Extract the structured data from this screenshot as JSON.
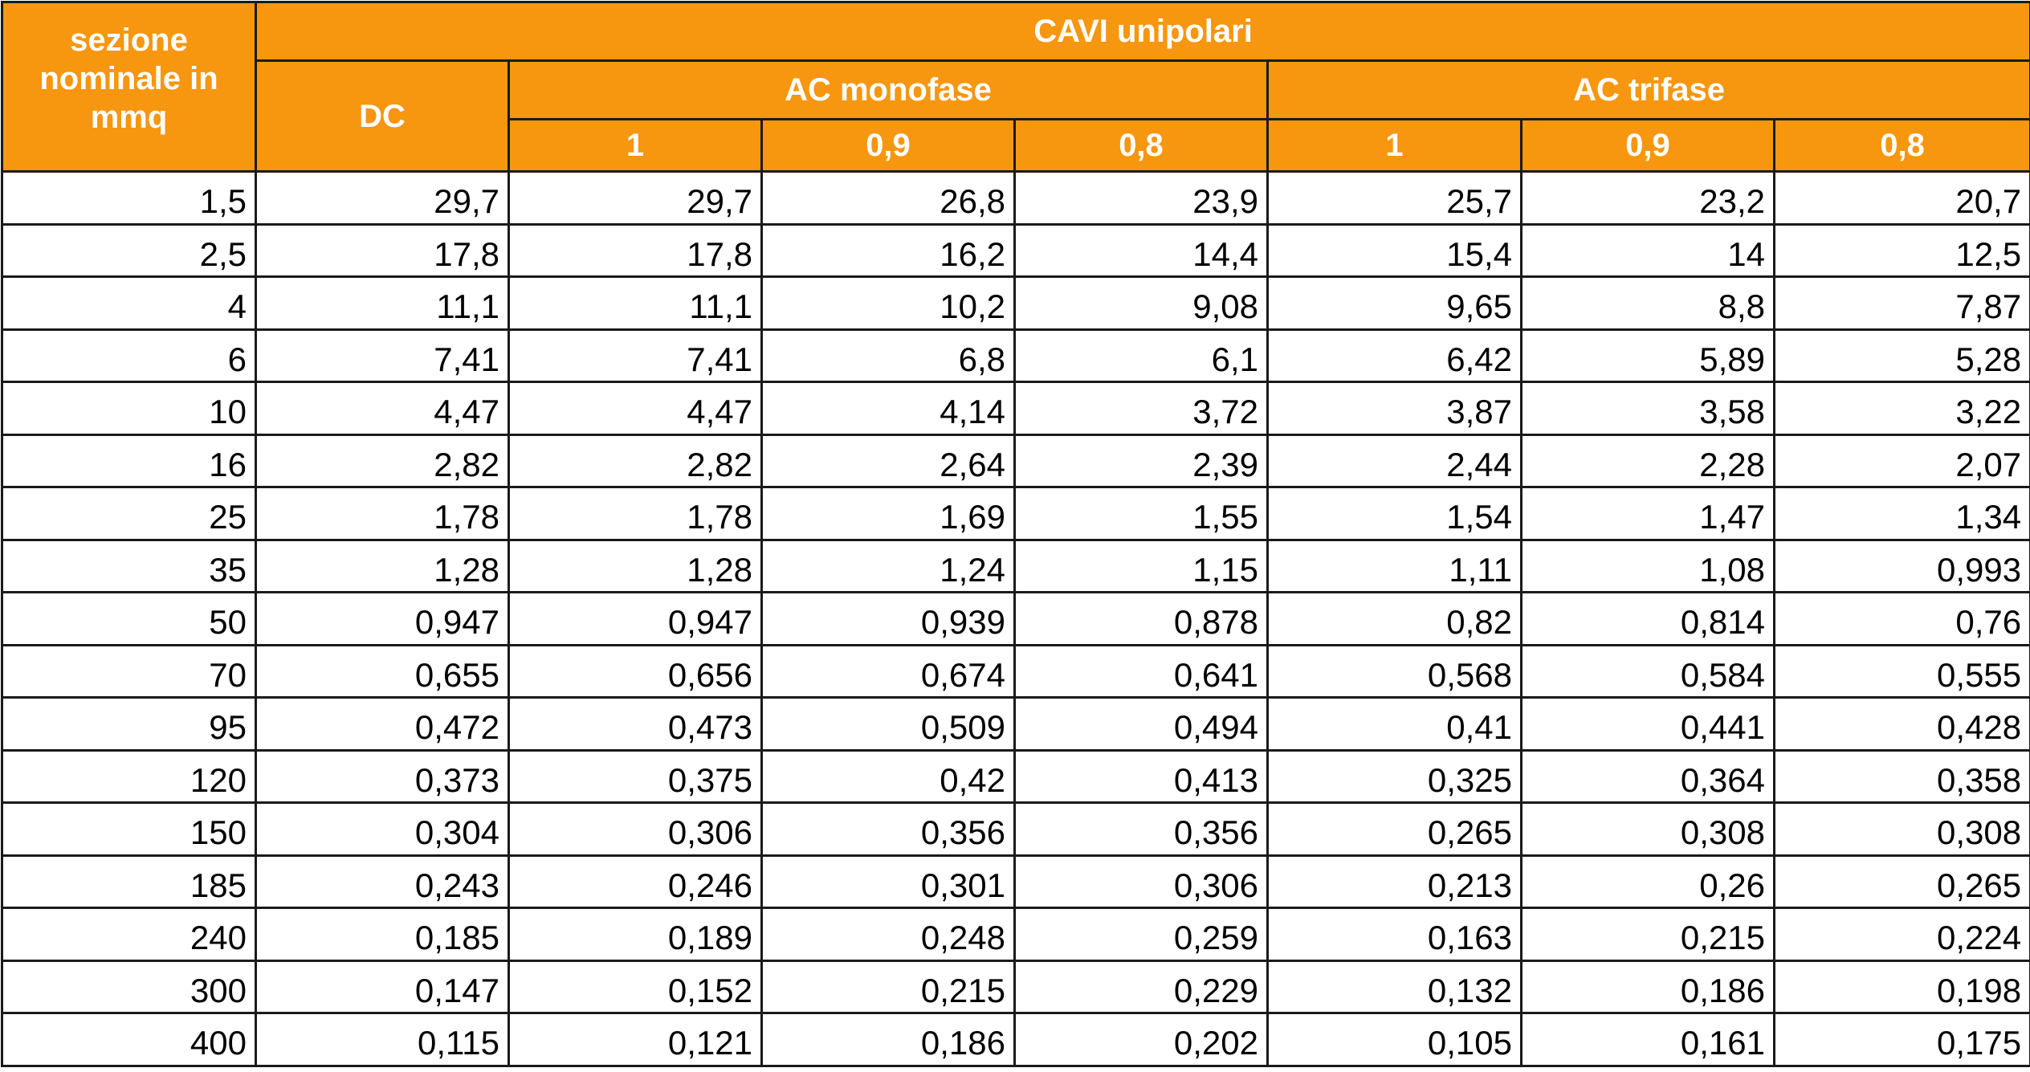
{
  "header": {
    "corner_lines": [
      "sezione",
      "nominale in",
      "mmq"
    ],
    "group_title": "CAVI unipolari",
    "dc_label": "DC",
    "ac_mono_label": "AC monofase",
    "ac_tri_label": "AC trifase",
    "cosphi": [
      "1",
      "0,9",
      "0,8",
      "1",
      "0,9",
      "0,8"
    ]
  },
  "rows": [
    [
      "1,5",
      "29,7",
      "29,7",
      "26,8",
      "23,9",
      "25,7",
      "23,2",
      "20,7"
    ],
    [
      "2,5",
      "17,8",
      "17,8",
      "16,2",
      "14,4",
      "15,4",
      "14",
      "12,5"
    ],
    [
      "4",
      "11,1",
      "11,1",
      "10,2",
      "9,08",
      "9,65",
      "8,8",
      "7,87"
    ],
    [
      "6",
      "7,41",
      "7,41",
      "6,8",
      "6,1",
      "6,42",
      "5,89",
      "5,28"
    ],
    [
      "10",
      "4,47",
      "4,47",
      "4,14",
      "3,72",
      "3,87",
      "3,58",
      "3,22"
    ],
    [
      "16",
      "2,82",
      "2,82",
      "2,64",
      "2,39",
      "2,44",
      "2,28",
      "2,07"
    ],
    [
      "25",
      "1,78",
      "1,78",
      "1,69",
      "1,55",
      "1,54",
      "1,47",
      "1,34"
    ],
    [
      "35",
      "1,28",
      "1,28",
      "1,24",
      "1,15",
      "1,11",
      "1,08",
      "0,993"
    ],
    [
      "50",
      "0,947",
      "0,947",
      "0,939",
      "0,878",
      "0,82",
      "0,814",
      "0,76"
    ],
    [
      "70",
      "0,655",
      "0,656",
      "0,674",
      "0,641",
      "0,568",
      "0,584",
      "0,555"
    ],
    [
      "95",
      "0,472",
      "0,473",
      "0,509",
      "0,494",
      "0,41",
      "0,441",
      "0,428"
    ],
    [
      "120",
      "0,373",
      "0,375",
      "0,42",
      "0,413",
      "0,325",
      "0,364",
      "0,358"
    ],
    [
      "150",
      "0,304",
      "0,306",
      "0,356",
      "0,356",
      "0,265",
      "0,308",
      "0,308"
    ],
    [
      "185",
      "0,243",
      "0,246",
      "0,301",
      "0,306",
      "0,213",
      "0,26",
      "0,265"
    ],
    [
      "240",
      "0,185",
      "0,189",
      "0,248",
      "0,259",
      "0,163",
      "0,215",
      "0,224"
    ],
    [
      "300",
      "0,147",
      "0,152",
      "0,215",
      "0,229",
      "0,132",
      "0,186",
      "0,198"
    ],
    [
      "400",
      "0,115",
      "0,121",
      "0,186",
      "0,202",
      "0,105",
      "0,161",
      "0,175"
    ]
  ],
  "colors": {
    "header_bg": "#f7960f",
    "header_text": "#ffffff",
    "border": "#1a1a1a",
    "cell_bg": "#ffffff"
  }
}
